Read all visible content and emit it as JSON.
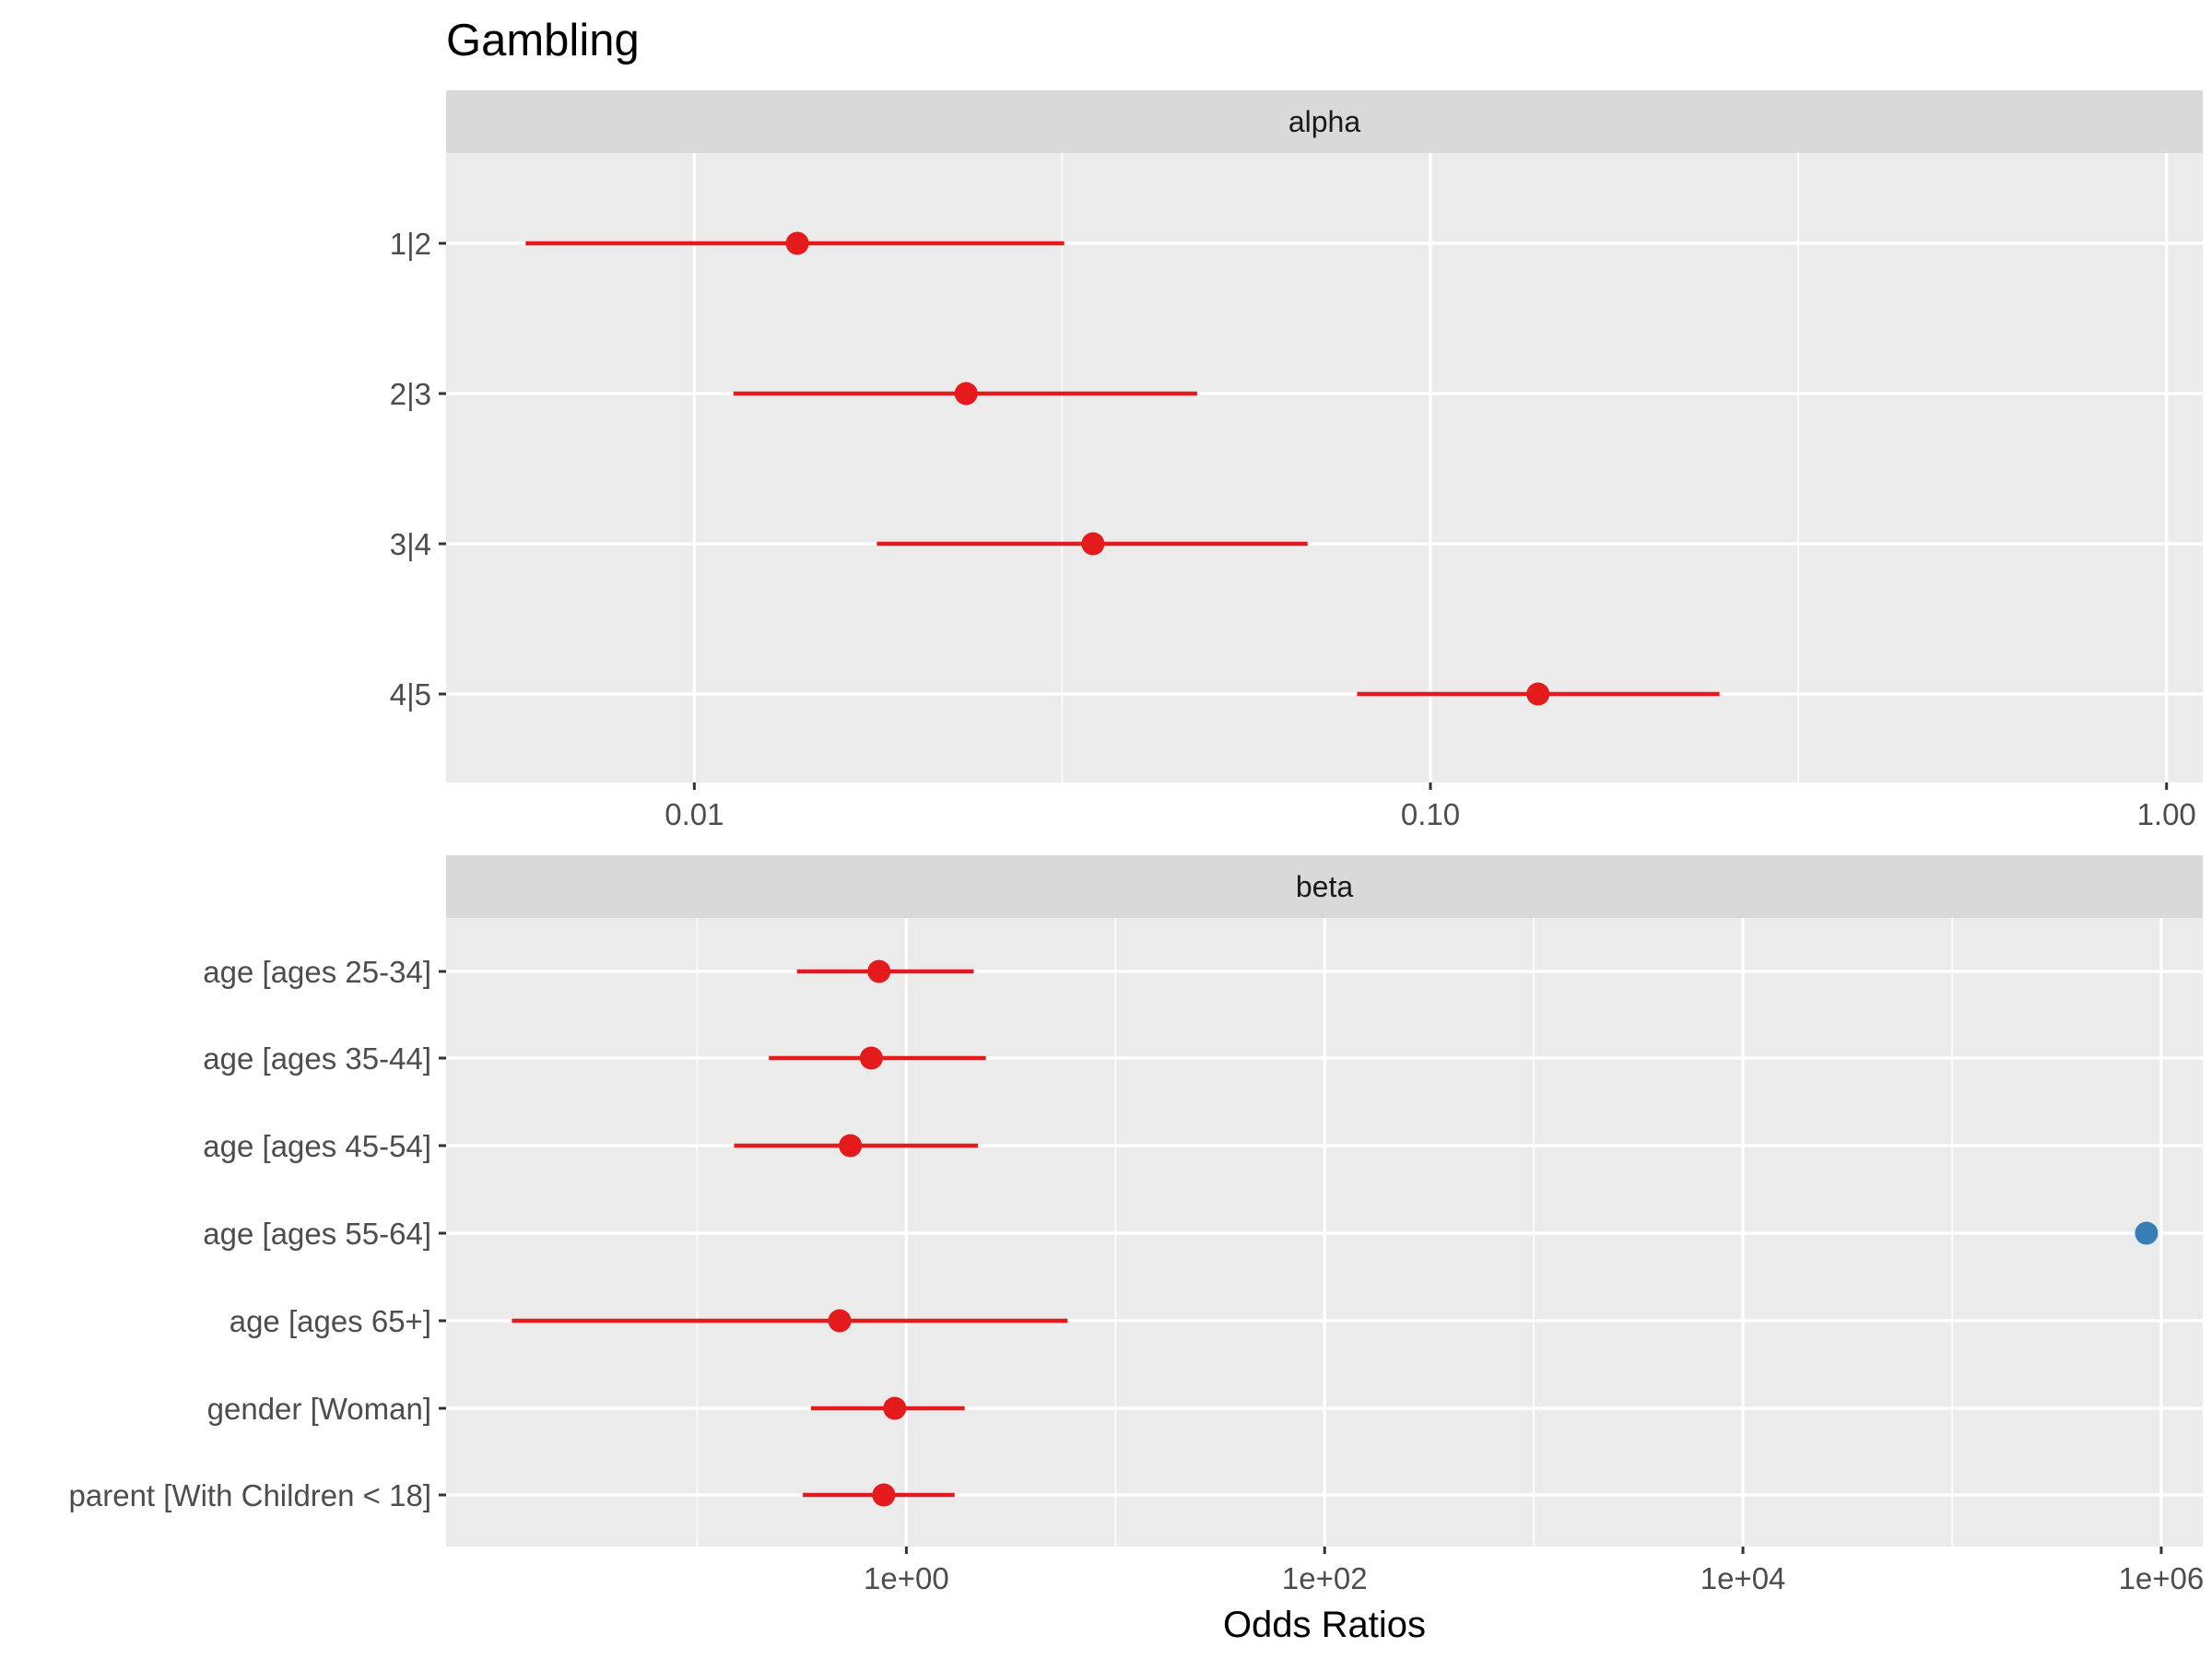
{
  "title": "Gambling",
  "xlabel": "Odds Ratios",
  "colors": {
    "significant": "#E41A1C",
    "nonsignificant": "#377EB8",
    "panel_bg": "#EBEBEB",
    "strip_bg": "#D9D9D9",
    "grid": "#FFFFFF",
    "axis_text": "#4D4D4D"
  },
  "chart_data": [
    {
      "type": "scatter",
      "facet": "alpha",
      "xscale": "log10",
      "xlim": [
        0.0046,
        1.12
      ],
      "xticks": [
        {
          "value": 0.01,
          "label": "0.01"
        },
        {
          "value": 0.1,
          "label": "0.10"
        },
        {
          "value": 1,
          "label": "1.00"
        }
      ],
      "xminor": [
        0.0316,
        0.316
      ],
      "terms": [
        {
          "label": "1|2",
          "estimate": 0.0138,
          "low": 0.0059,
          "high": 0.0318,
          "color": "#E41A1C"
        },
        {
          "label": "2|3",
          "estimate": 0.0234,
          "low": 0.0113,
          "high": 0.0482,
          "color": "#E41A1C"
        },
        {
          "label": "3|4",
          "estimate": 0.0348,
          "low": 0.0177,
          "high": 0.0681,
          "color": "#E41A1C"
        },
        {
          "label": "4|5",
          "estimate": 0.14,
          "low": 0.0795,
          "high": 0.247,
          "color": "#E41A1C"
        }
      ]
    },
    {
      "type": "scatter",
      "facet": "beta",
      "xscale": "log10",
      "xlim": [
        0.0063,
        1580000
      ],
      "xticks": [
        {
          "value": 1,
          "label": "1e+00"
        },
        {
          "value": 100,
          "label": "1e+02"
        },
        {
          "value": 10000,
          "label": "1e+04"
        },
        {
          "value": 1000000,
          "label": "1e+06"
        }
      ],
      "xminor": [
        0.1,
        10,
        1000,
        100000
      ],
      "terms": [
        {
          "label": "age [ages 25-34]",
          "estimate": 0.74,
          "low": 0.3,
          "high": 2.1,
          "color": "#E41A1C"
        },
        {
          "label": "age [ages 35-44]",
          "estimate": 0.68,
          "low": 0.22,
          "high": 2.4,
          "color": "#E41A1C"
        },
        {
          "label": "age [ages 45-54]",
          "estimate": 0.54,
          "low": 0.15,
          "high": 2.2,
          "color": "#E41A1C"
        },
        {
          "label": "age [ages 55-64]",
          "estimate": 850000,
          "low": null,
          "high": null,
          "color": "#377EB8"
        },
        {
          "label": "age [ages 65+]",
          "estimate": 0.48,
          "low": 0.013,
          "high": 5.9,
          "color": "#E41A1C"
        },
        {
          "label": "gender [Woman]",
          "estimate": 0.88,
          "low": 0.35,
          "high": 1.9,
          "color": "#E41A1C"
        },
        {
          "label": "parent [With Children < 18]",
          "estimate": 0.78,
          "low": 0.32,
          "high": 1.7,
          "color": "#E41A1C"
        }
      ]
    }
  ]
}
